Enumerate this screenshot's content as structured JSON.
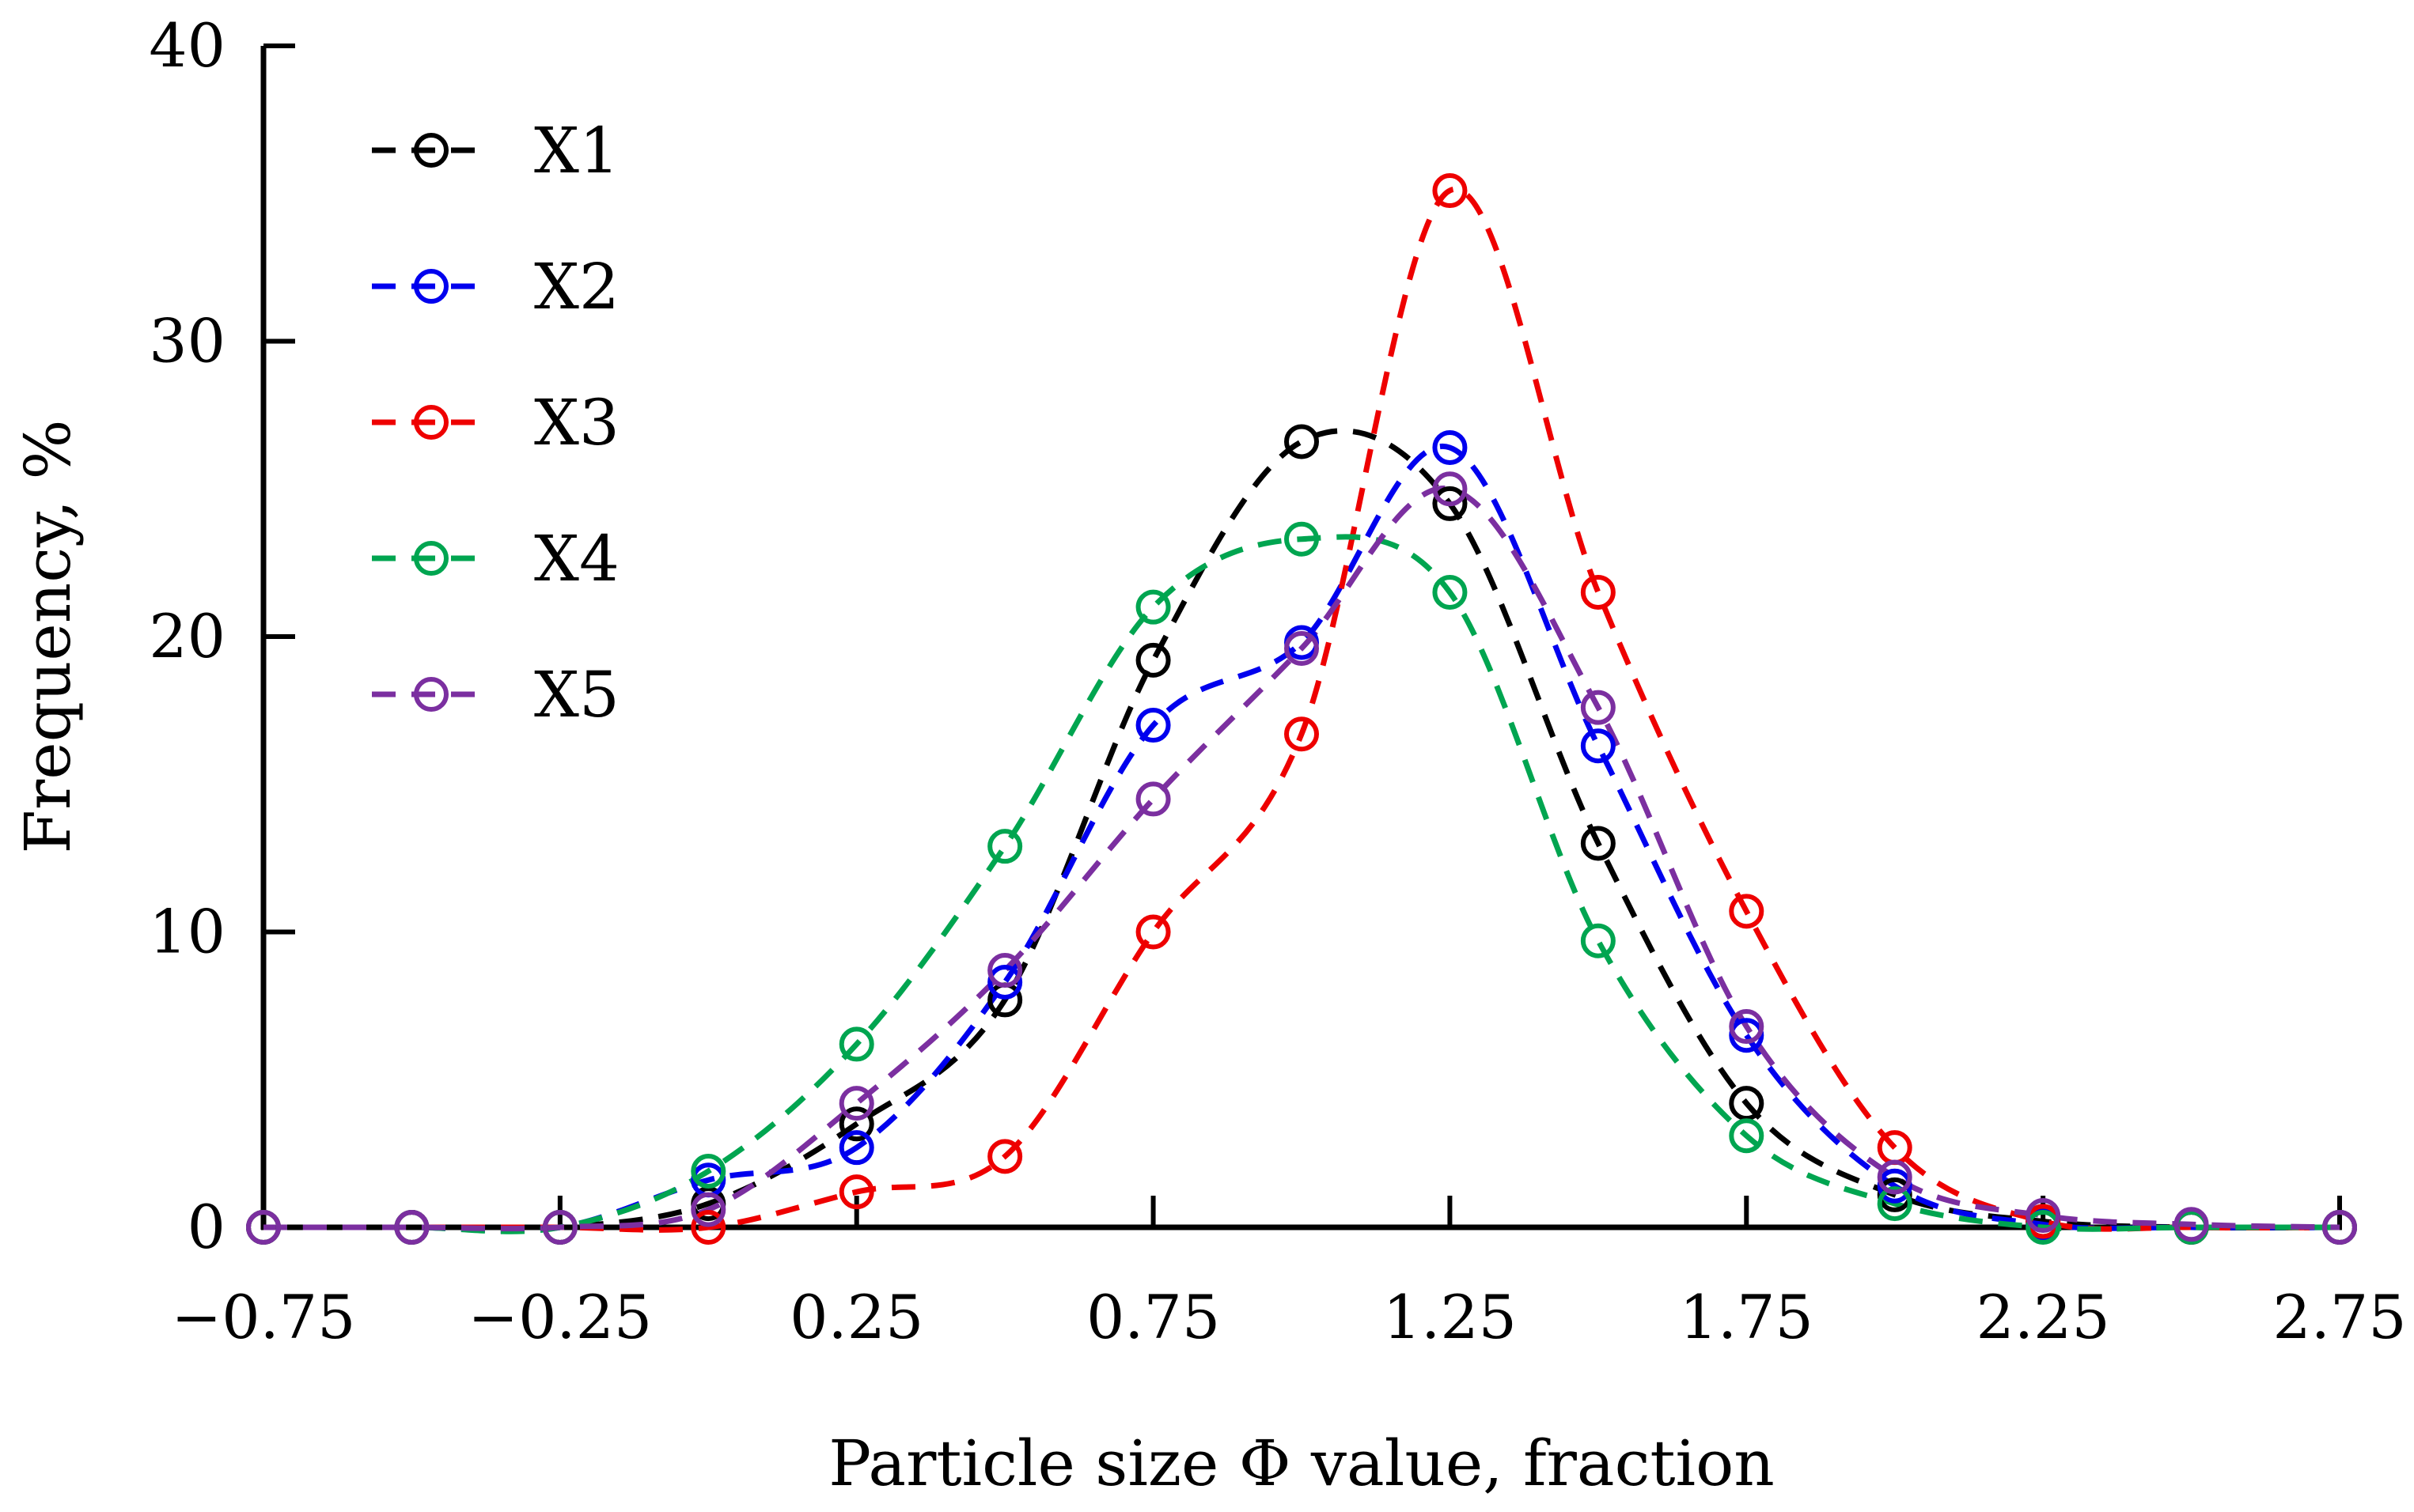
{
  "chart_data": {
    "type": "line",
    "title": "",
    "xlabel": "Particle size Φ value, fraction",
    "ylabel": "Frequency, %",
    "xlim": [
      -0.75,
      2.75
    ],
    "ylim": [
      0,
      40
    ],
    "x_ticks": [
      -0.75,
      -0.25,
      0.25,
      0.75,
      1.25,
      1.75,
      2.25,
      2.75
    ],
    "x_tick_labels": [
      "−0.75",
      "−0.25",
      "0.25",
      "0.75",
      "1.25",
      "1.75",
      "2.25",
      "2.75"
    ],
    "y_ticks": [
      0,
      10,
      20,
      30,
      40
    ],
    "y_tick_labels": [
      "0",
      "10",
      "20",
      "30",
      "40"
    ],
    "x": [
      -0.75,
      -0.5,
      -0.25,
      0,
      0.25,
      0.5,
      0.75,
      1,
      1.25,
      1.5,
      1.75,
      2,
      2.25,
      2.5,
      2.75
    ],
    "legend_position": "top-left",
    "series": [
      {
        "name": "X1",
        "color": "#000000",
        "values": [
          0,
          0,
          0,
          0.8,
          3.5,
          7.7,
          19.2,
          26.6,
          24.5,
          13.0,
          4.2,
          1.1,
          0.2,
          0,
          0
        ]
      },
      {
        "name": "X2",
        "color": "#0000ee",
        "values": [
          0,
          0,
          0,
          1.6,
          2.7,
          8.3,
          17.0,
          19.8,
          26.4,
          16.3,
          6.5,
          1.4,
          0.1,
          0,
          0
        ]
      },
      {
        "name": "X3",
        "color": "#ee0000",
        "values": [
          0,
          0,
          0,
          0,
          1.2,
          2.4,
          10.0,
          16.7,
          35.1,
          21.5,
          10.7,
          2.7,
          0.2,
          0,
          0
        ]
      },
      {
        "name": "X4",
        "color": "#00a550",
        "values": [
          0,
          0,
          0,
          1.9,
          6.2,
          12.9,
          21.0,
          23.3,
          21.5,
          9.7,
          3.1,
          0.8,
          0,
          0,
          0
        ]
      },
      {
        "name": "X5",
        "color": "#7b2fa0",
        "values": [
          0,
          0,
          0,
          0.6,
          4.2,
          8.7,
          14.5,
          19.6,
          25.0,
          17.6,
          6.8,
          1.7,
          0.4,
          0.1,
          0
        ]
      }
    ]
  }
}
